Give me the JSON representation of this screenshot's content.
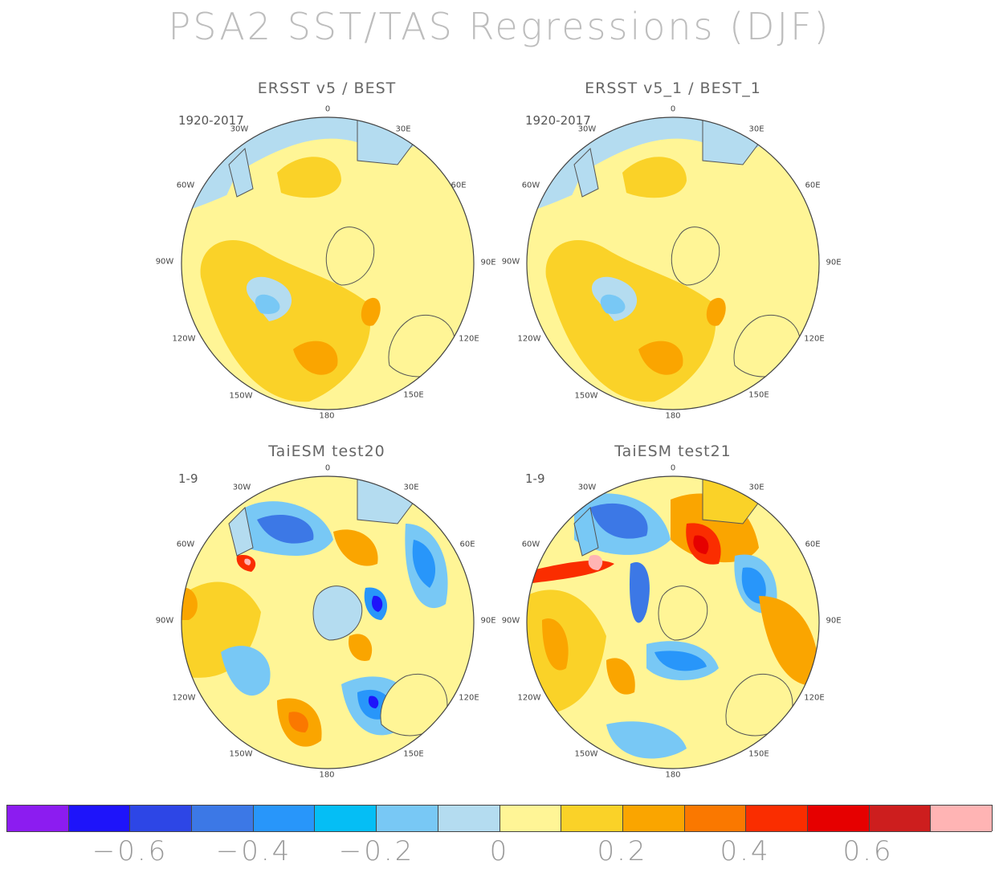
{
  "title": "PSA2 SST/TAS Regressions (DJF)",
  "panels": [
    {
      "title": "ERSST v5 / BEST",
      "period": "1920-2017"
    },
    {
      "title": "ERSST v5_1 / BEST_1",
      "period": "1920-2017"
    },
    {
      "title": "TaiESM test20",
      "period": "1-9"
    },
    {
      "title": "TaiESM test21",
      "period": "1-9"
    }
  ],
  "lon_labels": {
    "top": "0",
    "ne1": "30E",
    "ne2": "60E",
    "e": "90E",
    "se1": "120E",
    "se2": "150E",
    "bottom": "180",
    "sw2": "150W",
    "sw1": "120W",
    "w": "90W",
    "nw2": "60W",
    "nw1": "30W"
  },
  "colorbar": {
    "colors": [
      "#8c1cf0",
      "#1e14fa",
      "#2d46e6",
      "#3c78e6",
      "#2896fa",
      "#05bef5",
      "#78c8f5",
      "#b4dcf0",
      "#fff596",
      "#fad228",
      "#faa500",
      "#fa7800",
      "#fa2d00",
      "#e60000",
      "#cd1e1e",
      "#ffb4b4"
    ],
    "tick_labels": [
      "−0.6",
      "−0.4",
      "−0.2",
      "0",
      "0.2",
      "0.4",
      "0.6"
    ]
  }
}
